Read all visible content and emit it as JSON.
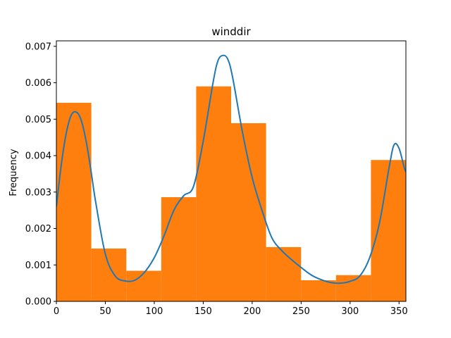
{
  "chart_data": {
    "type": "bar",
    "title": "winddir",
    "xlabel": "",
    "ylabel": "Frequency",
    "xlim": [
      0,
      357
    ],
    "ylim": [
      0,
      0.00715
    ],
    "grid": false,
    "colors": {
      "bars": "#ff7f0e",
      "kde": "#1f77b4",
      "axes": "#000000"
    },
    "bins": [
      {
        "x0": 0,
        "x1": 35.7,
        "value": 0.00545
      },
      {
        "x0": 35.7,
        "x1": 71.4,
        "value": 0.00145
      },
      {
        "x0": 71.4,
        "x1": 107.1,
        "value": 0.00084
      },
      {
        "x0": 107.1,
        "x1": 142.8,
        "value": 0.00286
      },
      {
        "x0": 142.8,
        "x1": 178.5,
        "value": 0.0059
      },
      {
        "x0": 178.5,
        "x1": 214.2,
        "value": 0.00489
      },
      {
        "x0": 214.2,
        "x1": 249.9,
        "value": 0.00149
      },
      {
        "x0": 249.9,
        "x1": 285.6,
        "value": 0.00058
      },
      {
        "x0": 285.6,
        "x1": 321.3,
        "value": 0.00072
      },
      {
        "x0": 321.3,
        "x1": 357,
        "value": 0.00388
      }
    ],
    "kde": {
      "x": [
        0,
        5,
        10,
        15,
        20,
        25,
        30,
        35,
        40,
        50,
        60,
        70,
        80,
        90,
        100,
        110,
        120,
        130,
        140,
        150,
        160,
        165,
        170,
        175,
        180,
        190,
        200,
        210,
        220,
        230,
        240,
        250,
        260,
        270,
        280,
        290,
        300,
        310,
        320,
        330,
        340,
        345,
        350,
        355,
        357
      ],
      "y": [
        0.0026,
        0.00375,
        0.0046,
        0.0051,
        0.0052,
        0.005,
        0.00445,
        0.00365,
        0.00275,
        0.0013,
        0.0007,
        0.00056,
        0.00058,
        0.0008,
        0.0012,
        0.0018,
        0.0025,
        0.0029,
        0.00315,
        0.0044,
        0.006,
        0.0066,
        0.00675,
        0.00665,
        0.00615,
        0.00465,
        0.0034,
        0.0025,
        0.00175,
        0.0014,
        0.00115,
        0.00093,
        0.00073,
        0.0006,
        0.00052,
        0.0005,
        0.00055,
        0.0007,
        0.0012,
        0.00215,
        0.0037,
        0.0043,
        0.0042,
        0.0037,
        0.00355
      ]
    },
    "xticks": [
      0,
      50,
      100,
      150,
      200,
      250,
      300,
      350
    ],
    "yticks": [
      0.0,
      0.001,
      0.002,
      0.003,
      0.004,
      0.005,
      0.006,
      0.007
    ],
    "ytick_labels": [
      "0.000",
      "0.001",
      "0.002",
      "0.003",
      "0.004",
      "0.005",
      "0.006",
      "0.007"
    ]
  }
}
